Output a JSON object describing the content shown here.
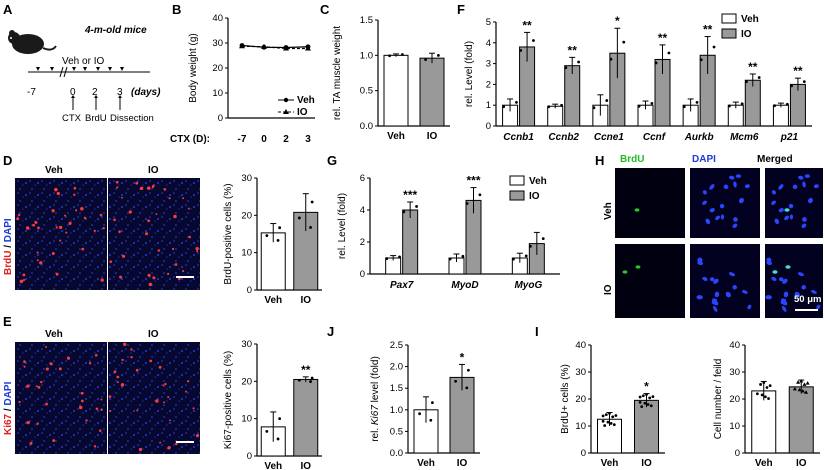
{
  "panel_labels": [
    "A",
    "B",
    "C",
    "D",
    "E",
    "F",
    "G",
    "H",
    "I",
    "J"
  ],
  "panel_a": {
    "subtitle": "4-m-old mice",
    "treatment": "Veh or IO",
    "timeline_days": [
      "-7",
      "0",
      "2",
      "3"
    ],
    "days_unit": "(days)",
    "events": [
      "CTX",
      "BrdU",
      "Dissection"
    ]
  },
  "panel_d": {
    "group_labels": [
      "Veh",
      "IO"
    ],
    "stain_label_1": "BrdU",
    "stain_sep": " / ",
    "stain_label_2": "DAPI"
  },
  "panel_e": {
    "group_labels": [
      "Veh",
      "IO"
    ],
    "stain_label_1": "Ki67",
    "stain_sep": " / ",
    "stain_label_2": "DAPI"
  },
  "panel_h": {
    "col_labels": [
      "BrdU",
      "DAPI",
      "Merged"
    ],
    "row_labels": [
      "Veh",
      "IO"
    ],
    "scale_label": "50 μm"
  },
  "colors": {
    "white_bar": "#ffffff",
    "gray_bar": "#999999",
    "brdu_green": "#22bb22",
    "dapi_blue": "#1f3bd6",
    "stain_red": "#e02020",
    "micro_bg": "#050525"
  },
  "chart_data": [
    {
      "id": "B",
      "type": "line",
      "ylabel": "Body weight (g)",
      "xlabel": "CTX (D):",
      "x": [
        "-7",
        "0",
        "2",
        "3"
      ],
      "ylim": [
        0,
        40
      ],
      "yticks": [
        0,
        10,
        20,
        30,
        40
      ],
      "series": [
        {
          "name": "Veh",
          "values": [
            29,
            28.3,
            28.2,
            28.5
          ]
        },
        {
          "name": "IO",
          "values": [
            28.7,
            28.5,
            27.8,
            27.8
          ]
        }
      ],
      "legend": "bottom-right"
    },
    {
      "id": "C",
      "type": "bar",
      "ylabel": "rel. TA muscle weight",
      "categories": [
        "Veh",
        "IO"
      ],
      "values": [
        1.0,
        0.96
      ],
      "errors": [
        0.02,
        0.07
      ],
      "ylim": [
        0,
        1.5
      ],
      "yticks": [
        0.0,
        0.5,
        1.0,
        1.5
      ]
    },
    {
      "id": "F",
      "type": "bar",
      "ylabel": "rel. Level (fold)",
      "categories": [
        "Ccnb1",
        "Ccnb2",
        "Ccne1",
        "Ccnf",
        "Aurkb",
        "Mcm6",
        "p21"
      ],
      "series": [
        {
          "name": "Veh",
          "values": [
            1.0,
            0.95,
            1.0,
            1.0,
            1.0,
            1.0,
            1.0
          ],
          "errors": [
            0.3,
            0.1,
            0.5,
            0.2,
            0.3,
            0.15,
            0.1
          ]
        },
        {
          "name": "IO",
          "values": [
            3.8,
            2.9,
            3.5,
            3.2,
            3.4,
            2.2,
            2.0
          ],
          "errors": [
            0.7,
            0.4,
            1.2,
            0.7,
            0.9,
            0.3,
            0.3
          ]
        }
      ],
      "significance": [
        "**",
        "**",
        "*",
        "**",
        "**",
        "**",
        "**"
      ],
      "ylim": [
        0,
        5
      ],
      "yticks": [
        0,
        1,
        2,
        3,
        4,
        5
      ],
      "legend": "top-right"
    },
    {
      "id": "D",
      "type": "bar",
      "ylabel": "BrdU-positive cells (%)",
      "categories": [
        "Veh",
        "IO"
      ],
      "values": [
        15.3,
        20.8
      ],
      "errors": [
        2.5,
        5.0
      ],
      "ylim": [
        0,
        30
      ],
      "yticks": [
        0,
        10,
        20,
        30
      ]
    },
    {
      "id": "G",
      "type": "bar",
      "ylabel": "rel. Level (fold)",
      "categories": [
        "Pax7",
        "MyoD",
        "MyoG"
      ],
      "series": [
        {
          "name": "Veh",
          "values": [
            1.0,
            1.0,
            1.0
          ],
          "errors": [
            0.15,
            0.25,
            0.3
          ]
        },
        {
          "name": "IO",
          "values": [
            4.0,
            4.6,
            1.9
          ],
          "errors": [
            0.5,
            0.8,
            0.7
          ]
        }
      ],
      "significance": [
        "***",
        "***",
        ""
      ],
      "ylim": [
        0,
        6
      ],
      "yticks": [
        0,
        2,
        4,
        6
      ],
      "legend": "top-right"
    },
    {
      "id": "E",
      "type": "bar",
      "ylabel": "Ki67-positive cells (%)",
      "categories": [
        "Veh",
        "IO"
      ],
      "values": [
        7.8,
        20.5
      ],
      "errors": [
        4.0,
        0.7
      ],
      "significance": [
        "",
        "**"
      ],
      "ylim": [
        0,
        30
      ],
      "yticks": [
        0,
        10,
        20,
        30
      ]
    },
    {
      "id": "J",
      "type": "bar",
      "ylabel_pre": "rel. ",
      "ylabel_it": "Ki67",
      "ylabel_post": " level (fold)",
      "categories": [
        "Veh",
        "IO"
      ],
      "values": [
        1.0,
        1.75
      ],
      "errors": [
        0.3,
        0.3
      ],
      "significance": [
        "",
        "*"
      ],
      "ylim": [
        0,
        2.5
      ],
      "yticks": [
        0.0,
        0.5,
        1.0,
        1.5,
        2.0,
        2.5
      ]
    },
    {
      "id": "I1",
      "type": "bar",
      "ylabel": "BrdU+ cells (%)",
      "categories": [
        "Veh",
        "IO"
      ],
      "values": [
        12.5,
        19.5
      ],
      "errors": [
        2.5,
        2.5
      ],
      "significance": [
        "",
        "*"
      ],
      "ylim": [
        0,
        40
      ],
      "yticks": [
        0,
        10,
        20,
        30,
        40
      ]
    },
    {
      "id": "I2",
      "type": "bar",
      "ylabel": "Cell number / feild",
      "categories": [
        "Veh",
        "IO"
      ],
      "values": [
        23,
        24.5
      ],
      "errors": [
        3.5,
        2.5
      ],
      "ylim": [
        0,
        40
      ],
      "yticks": [
        0,
        10,
        20,
        30,
        40
      ]
    }
  ]
}
